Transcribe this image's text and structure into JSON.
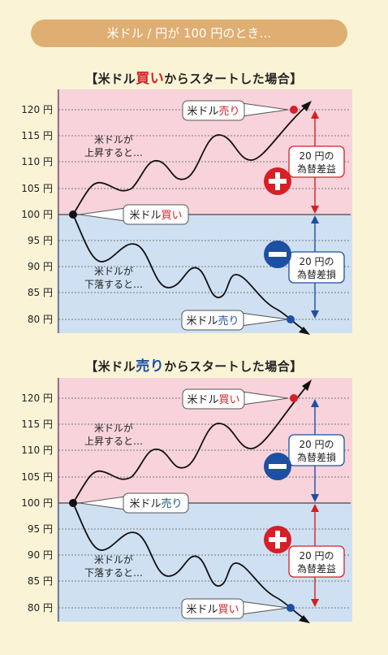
{
  "banner": "米ドル / 円が 100 円のとき…",
  "sections": [
    {
      "title_pre": "【米ドル",
      "title_em": "買い",
      "title_post": "からスタートした場合】",
      "start_label_pre": "米ドル",
      "start_label_em": "買い",
      "top_label_pre": "米ドル",
      "top_label_em": "売り",
      "bottom_label_pre": "米ドル",
      "bottom_label_em": "売り",
      "rise_text": [
        "米ドルが",
        "上昇すると…"
      ],
      "fall_text": [
        "米ドルが",
        "下落すると…"
      ],
      "top_box": [
        "20 円の",
        "為替差益"
      ],
      "bottom_box": [
        "20 円の",
        "為替差損"
      ],
      "top_sign": "plus",
      "bottom_sign": "minus"
    },
    {
      "title_pre": "【米ドル",
      "title_em": "売り",
      "title_post": "からスタートした場合】",
      "start_label_pre": "米ドル",
      "start_label_em": "売り",
      "top_label_pre": "米ドル",
      "top_label_em": "買い",
      "bottom_label_pre": "米ドル",
      "bottom_label_em": "買い",
      "rise_text": [
        "米ドルが",
        "上昇すると…"
      ],
      "fall_text": [
        "米ドルが",
        "下落すると…"
      ],
      "top_box": [
        "20 円の",
        "為替差損"
      ],
      "bottom_box": [
        "20 円の",
        "為替差益"
      ],
      "top_sign": "minus",
      "bottom_sign": "plus"
    }
  ],
  "y_ticks": [
    "120 円",
    "115 円",
    "110 円",
    "105 円",
    "100 円",
    "95 円",
    "90 円",
    "85 円",
    "80 円"
  ],
  "colors": {
    "gain": "#d61f26",
    "loss": "#1d4fa3",
    "upper_bg": "#f8d3dc",
    "lower_bg": "#cfe0f2",
    "banner": "#dfae72",
    "background": "#fbf3d6"
  }
}
